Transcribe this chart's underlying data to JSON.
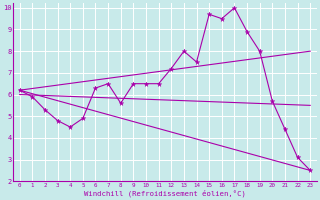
{
  "xlabel": "Windchill (Refroidissement éolien,°C)",
  "bg_color": "#c8eaea",
  "line_color": "#aa00aa",
  "grid_color": "#ffffff",
  "xlim": [
    -0.5,
    23.5
  ],
  "ylim": [
    2,
    10.2
  ],
  "xticks": [
    0,
    1,
    2,
    3,
    4,
    5,
    6,
    7,
    8,
    9,
    10,
    11,
    12,
    13,
    14,
    15,
    16,
    17,
    18,
    19,
    20,
    21,
    22,
    23
  ],
  "yticks": [
    2,
    3,
    4,
    5,
    6,
    7,
    8,
    9,
    10
  ],
  "jagged": [
    6.2,
    5.9,
    5.3,
    4.8,
    4.5,
    4.9,
    6.3,
    6.5,
    5.6,
    6.5,
    6.5,
    6.5,
    7.2,
    8.0,
    7.5,
    9.7,
    9.5,
    10.0,
    8.9,
    8.0,
    5.7,
    4.4,
    3.1,
    2.5
  ],
  "line_up": [
    [
      0,
      6.2
    ],
    [
      23,
      8.0
    ]
  ],
  "line_down": [
    [
      0,
      6.2
    ],
    [
      23,
      2.5
    ]
  ],
  "line_flat": [
    [
      0,
      6.0
    ],
    [
      23,
      5.5
    ]
  ]
}
